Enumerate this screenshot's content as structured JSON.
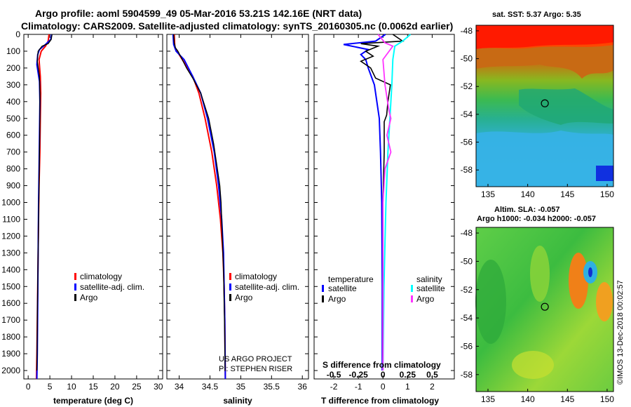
{
  "title": {
    "line1": "Argo profile: aoml 5904599_49 05-Mar-2016 53.21S 142.16E (NRT data)",
    "line2": "Climatology: CARS2009. Satellite-adjusted climatology: synTS_20160305.nc (0.0062d earlier)"
  },
  "colors": {
    "climatology": "#ff0000",
    "satellite": "#0000ff",
    "argo": "#000000",
    "sal_satellite": "#00ffff",
    "sal_argo": "#ff33ff"
  },
  "chart_data": [
    {
      "type": "line",
      "name": "temperature-profile",
      "xlabel": "temperature (deg C)",
      "xlim": [
        -1,
        31
      ],
      "xticks": [
        "0",
        "5",
        "10",
        "15",
        "20",
        "25",
        "30"
      ],
      "ylim": [
        0,
        2050
      ],
      "yticks": [
        "0",
        "100",
        "200",
        "300",
        "400",
        "500",
        "600",
        "700",
        "800",
        "900",
        "1000",
        "1100",
        "1200",
        "1300",
        "1400",
        "1500",
        "1600",
        "1700",
        "1800",
        "1900",
        "2000"
      ],
      "legend": [
        "climatology",
        "satellite-adj. clim.",
        "Argo"
      ],
      "series": [
        {
          "name": "climatology",
          "depth": [
            0,
            40,
            70,
            100,
            150,
            250,
            350,
            500,
            700,
            900,
            1100,
            1300,
            1500,
            1700,
            1900,
            2050
          ],
          "values": [
            4.8,
            4.6,
            4.0,
            3.0,
            2.5,
            2.8,
            2.9,
            2.8,
            2.7,
            2.5,
            2.4,
            2.3,
            2.2,
            2.1,
            2.0,
            1.9
          ]
        },
        {
          "name": "satellite-adj. clim.",
          "depth": [
            0,
            30,
            60,
            90,
            120,
            180,
            280,
            400,
            600,
            800,
            1000,
            1300,
            1600,
            1900,
            2050
          ],
          "values": [
            5.4,
            5.2,
            4.0,
            2.6,
            2.2,
            2.0,
            2.6,
            2.7,
            2.6,
            2.5,
            2.4,
            2.3,
            2.2,
            2.1,
            2.0
          ]
        },
        {
          "name": "Argo",
          "depth": [
            0,
            30,
            55,
            70,
            100,
            160,
            250,
            350,
            500,
            700,
            900,
            1100,
            1300,
            1500,
            1700,
            1900,
            2000
          ],
          "values": [
            5.5,
            5.3,
            4.6,
            3.2,
            2.3,
            2.1,
            2.6,
            2.7,
            2.7,
            2.6,
            2.5,
            2.4,
            2.3,
            2.2,
            2.1,
            2.05,
            2.0
          ]
        }
      ]
    },
    {
      "type": "line",
      "name": "salinity-profile",
      "xlabel": "salinity",
      "xlim": [
        33.8,
        36.1
      ],
      "xticks": [
        "34",
        "34.5",
        "35",
        "35.5",
        "36"
      ],
      "ylim": [
        0,
        2050
      ],
      "legend": [
        "climatology",
        "satellite-adj. clim.",
        "Argo"
      ],
      "credit": [
        "US ARGO PROJECT",
        "PI: STEPHEN RISER"
      ],
      "series": [
        {
          "name": "climatology",
          "depth": [
            0,
            80,
            150,
            250,
            350,
            500,
            700,
            900,
            1100,
            1300,
            1500,
            1700,
            1900,
            2050
          ],
          "values": [
            33.92,
            33.93,
            34.05,
            34.22,
            34.32,
            34.42,
            34.53,
            34.61,
            34.67,
            34.71,
            34.73,
            34.74,
            34.745,
            34.75
          ]
        },
        {
          "name": "satellite-adj. clim.",
          "depth": [
            0,
            60,
            100,
            150,
            250,
            350,
            500,
            700,
            900,
            1100,
            1300,
            1500,
            1700,
            1900,
            2050
          ],
          "values": [
            33.9,
            33.91,
            33.95,
            34.08,
            34.22,
            34.35,
            34.46,
            34.57,
            34.64,
            34.69,
            34.72,
            34.73,
            34.74,
            34.745,
            34.75
          ]
        },
        {
          "name": "Argo",
          "depth": [
            0,
            50,
            80,
            100,
            150,
            200,
            260,
            350,
            500,
            650,
            800,
            900,
            1000,
            1200,
            1400,
            1600,
            1800,
            2000
          ],
          "values": [
            33.91,
            33.92,
            33.94,
            33.98,
            34.05,
            34.12,
            34.22,
            34.35,
            34.48,
            34.56,
            34.62,
            34.66,
            34.68,
            34.7,
            34.72,
            34.73,
            34.74,
            34.745
          ]
        }
      ]
    },
    {
      "type": "line",
      "name": "difference-profile",
      "xlabel": "T difference from climatology",
      "xlabel2": "S difference from climatology",
      "xlim": [
        -2.8,
        2.9
      ],
      "xticks": [
        "-2",
        "-1",
        "0",
        "1",
        "2"
      ],
      "xticks2": [
        "-0.5",
        "-0.25",
        "0",
        "0.25",
        "0.5"
      ],
      "ylim": [
        0,
        2050
      ],
      "legend_temperature": {
        "heading": "temperature",
        "items": [
          "satellite",
          "Argo"
        ]
      },
      "legend_salinity": {
        "heading": "salinity",
        "items": [
          "satellite",
          "Argo"
        ]
      },
      "series": [
        {
          "name": "T satellite",
          "depth": [
            0,
            40,
            60,
            90,
            120,
            150,
            200,
            300,
            400,
            500,
            700,
            1000,
            1500,
            2000
          ],
          "values": [
            0.1,
            -0.3,
            -1.6,
            -0.6,
            -0.9,
            -0.7,
            -0.6,
            -0.35,
            -0.25,
            -0.15,
            -0.1,
            -0.05,
            -0.03,
            -0.03
          ]
        },
        {
          "name": "T Argo",
          "depth": [
            0,
            40,
            55,
            70,
            100,
            130,
            160,
            200,
            260,
            300,
            400,
            480,
            520,
            700,
            1000,
            1500,
            2000
          ],
          "values": [
            0.4,
            0.8,
            -0.9,
            -0.2,
            -0.7,
            -0.4,
            -0.9,
            -0.5,
            -0.3,
            0.3,
            0.2,
            0.15,
            0.05,
            0.05,
            0.0,
            0.0,
            0.0
          ]
        },
        {
          "name": "S satellite",
          "depth": [
            0,
            40,
            70,
            150,
            300,
            500,
            700,
            1000,
            1500,
            2000
          ],
          "values": [
            0.28,
            0.2,
            0.12,
            0.1,
            0.09,
            0.07,
            0.05,
            0.03,
            0.01,
            0.0
          ]
        },
        {
          "name": "S Argo",
          "depth": [
            0,
            50,
            70,
            150,
            300,
            450,
            500,
            600,
            700,
            800,
            1000,
            1500,
            2000
          ],
          "values": [
            -0.05,
            0.02,
            0.1,
            0.0,
            0.02,
            0.06,
            0.08,
            0.04,
            0.08,
            0.02,
            0.0,
            0.0,
            0.0
          ]
        }
      ]
    },
    {
      "type": "heatmap",
      "name": "sst-map",
      "title": "sat. SST: 5.37 Argo: 5.35",
      "xticks": [
        "135",
        "140",
        "145",
        "150"
      ],
      "yticks": [
        "-48",
        "-50",
        "-52",
        "-54",
        "-56",
        "-58"
      ],
      "lon_range": [
        133.5,
        150.8
      ],
      "lat_range": [
        -59.2,
        -47.6
      ],
      "marker": {
        "lon": 142.16,
        "lat": -53.21
      }
    },
    {
      "type": "heatmap",
      "name": "sla-map",
      "title": "Altim. SLA: -0.057",
      "title2": "Argo h1000: -0.034 h2000: -0.057",
      "xticks": [
        "135",
        "140",
        "145",
        "150"
      ],
      "yticks": [
        "-48",
        "-50",
        "-52",
        "-54",
        "-56",
        "-58"
      ],
      "lon_range": [
        133.5,
        150.8
      ],
      "lat_range": [
        -59.2,
        -47.6
      ],
      "marker": {
        "lon": 142.16,
        "lat": -53.21
      }
    }
  ],
  "credit": "©IMOS 13-Dec-2018 00:02:57"
}
